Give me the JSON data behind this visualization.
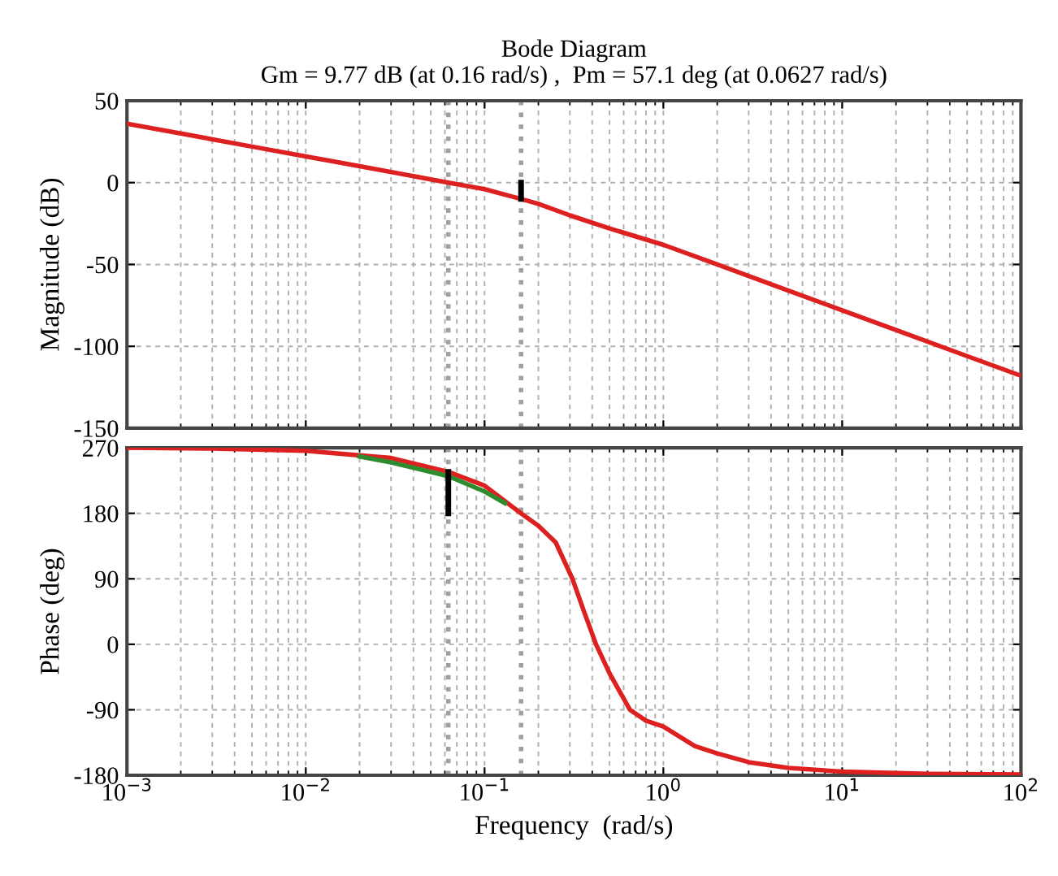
{
  "chart_data": [
    {
      "type": "line",
      "title": "Bode Diagram",
      "subtitle": "Gm = 9.77 dB (at 0.16 rad/s) ,  Pm = 57.1 deg (at 0.0627 rad/s)",
      "ylabel": "Magnitude (dB)",
      "log": "x",
      "grid": true,
      "tick_labels": "y",
      "xlim": [
        0.001,
        100
      ],
      "xticks": [
        {
          "value": 0.001,
          "label": null
        },
        {
          "value": 0.01,
          "label": null
        },
        {
          "value": 0.1,
          "label": null
        },
        {
          "value": 1,
          "label": null
        },
        {
          "value": 10,
          "label": null
        },
        {
          "value": 100,
          "label": null
        }
      ],
      "ylim": [
        -150,
        50
      ],
      "yticks": [
        -150,
        -100,
        -50,
        0,
        50
      ],
      "ref_lines": [
        {
          "axis": "x",
          "value": 0.0627,
          "color": "#a0a0a0",
          "line_style": "dotted"
        },
        {
          "axis": "x",
          "value": 0.16,
          "color": "#a0a0a0",
          "line_style": "dotted"
        }
      ],
      "series": [
        {
          "color": "#dd2020",
          "x": [
            0.001,
            0.002,
            0.005,
            0.01,
            0.02,
            0.05,
            0.0627,
            0.1,
            0.16,
            0.2,
            0.3,
            0.5,
            1,
            2,
            5,
            10,
            20,
            50,
            100
          ],
          "values": [
            36,
            30,
            22,
            16,
            10,
            2,
            0,
            -4,
            -10,
            -13,
            -20,
            -28,
            -38,
            -50,
            -66,
            -78,
            -90,
            -106,
            -118
          ]
        },
        {
          "color": "#000000",
          "x": [
            0.16,
            0.16
          ],
          "values": [
            0,
            -10
          ]
        }
      ]
    },
    {
      "type": "line",
      "xlabel": "Frequency  (rad/s)",
      "ylabel": "Phase (deg)",
      "log": "x",
      "grid": true,
      "xlim": [
        0.001,
        100
      ],
      "xticks": [
        {
          "value": 0.001,
          "label": "10$^{−3}$"
        },
        {
          "value": 0.01,
          "label": "10$^{−2}$"
        },
        {
          "value": 0.1,
          "label": "10$^{−1}$"
        },
        {
          "value": 1,
          "label": "10$^{0}$"
        },
        {
          "value": 10,
          "label": "10$^{1}$"
        },
        {
          "value": 100,
          "label": "10$^{2}$"
        }
      ],
      "ylim": [
        -180,
        270
      ],
      "yticks": [
        -180,
        -90,
        0,
        90,
        180,
        270
      ],
      "ref_lines": [
        {
          "axis": "x",
          "value": 0.0627,
          "color": "#a0a0a0",
          "line_style": "dotted"
        },
        {
          "axis": "x",
          "value": 0.16,
          "color": "#a0a0a0",
          "line_style": "dotted"
        }
      ],
      "series": [
        {
          "color": "#dd2020",
          "x": [
            0.001,
            0.003,
            0.01,
            0.03,
            0.0627,
            0.1,
            0.16,
            0.2,
            0.25,
            0.31,
            0.36,
            0.42,
            0.5,
            0.65,
            0.8,
            1,
            1.5,
            2,
            3,
            5,
            10,
            30,
            100
          ],
          "values": [
            270,
            269,
            266,
            256,
            237,
            218,
            180,
            163,
            140,
            90,
            45,
            0,
            -40,
            -90,
            -105,
            -113,
            -140,
            -150,
            -162,
            -170,
            -175,
            -178,
            -179
          ]
        },
        {
          "color": "#2e8b2e",
          "x": [
            0.02,
            0.03,
            0.0627,
            0.1,
            0.13
          ],
          "values": [
            258,
            250,
            231,
            210,
            194
          ]
        },
        {
          "color": "#000000",
          "x": [
            0.0627,
            0.0627
          ],
          "values": [
            180,
            237
          ]
        }
      ]
    }
  ]
}
